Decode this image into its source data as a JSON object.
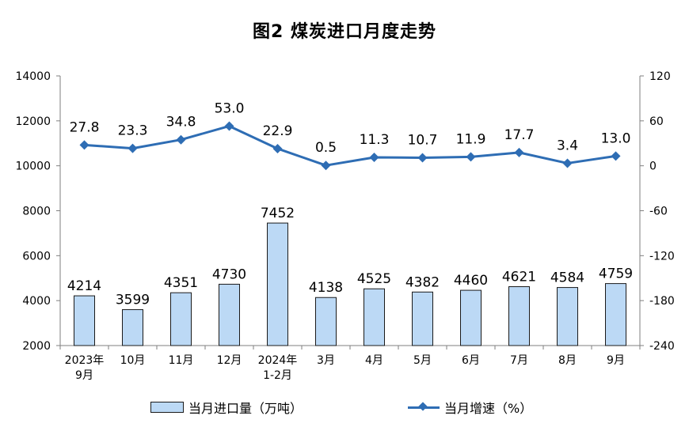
{
  "chart_data": {
    "type": "bar+line",
    "title": "图2  煤炭进口月度走势",
    "categories": [
      [
        "2023年",
        "9月"
      ],
      [
        "10月"
      ],
      [
        "11月"
      ],
      [
        "12月"
      ],
      [
        "2024年",
        "1-2月"
      ],
      [
        "3月"
      ],
      [
        "4月"
      ],
      [
        "5月"
      ],
      [
        "6月"
      ],
      [
        "7月"
      ],
      [
        "8月"
      ],
      [
        "9月"
      ]
    ],
    "series": [
      {
        "name": "当月进口量（万吨）",
        "type": "bar",
        "axis": "left",
        "values": [
          4214,
          3599,
          4351,
          4730,
          7452,
          4138,
          4525,
          4382,
          4460,
          4621,
          4584,
          4759
        ],
        "labels": [
          "4214",
          "3599",
          "4351",
          "4730",
          "7452",
          "4138",
          "4525",
          "4382",
          "4460",
          "4621",
          "4584",
          "4759"
        ],
        "color": "#bcd9f5"
      },
      {
        "name": "当月增速（%）",
        "type": "line",
        "axis": "right",
        "values": [
          27.8,
          23.3,
          34.8,
          53.0,
          22.9,
          0.5,
          11.3,
          10.7,
          11.9,
          17.7,
          3.4,
          13.0
        ],
        "labels": [
          "27.8",
          "23.3",
          "34.8",
          "53.0",
          "22.9",
          "0.5",
          "11.3",
          "10.7",
          "11.9",
          "17.7",
          "3.4",
          "13.0"
        ],
        "color": "#2e6db4"
      }
    ],
    "y_left": {
      "min": 2000,
      "max": 14000,
      "ticks": [
        "2000",
        "4000",
        "6000",
        "8000",
        "10000",
        "12000",
        "14000"
      ]
    },
    "y_right": {
      "min": -240,
      "max": 120,
      "ticks": [
        "-240",
        "-180",
        "-120",
        "-60",
        "0",
        "60",
        "120"
      ]
    },
    "grid": false,
    "legend_position": "bottom"
  }
}
